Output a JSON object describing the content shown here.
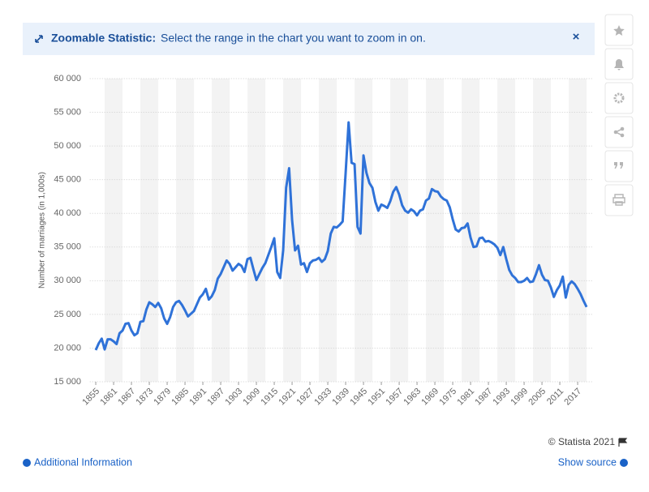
{
  "ui": {
    "banner_title": "Zoomable Statistic:",
    "banner_text": "Select the range in the chart you want to zoom in on.",
    "close": "×",
    "copyright": "© Statista 2021",
    "additional_info": "Additional Information",
    "show_source": "Show source"
  },
  "chart_data": {
    "type": "line",
    "ylabel": "Number of marriages (in 1,000s)",
    "color": "#2f72d8",
    "grid": true,
    "x": [
      1855,
      1856,
      1857,
      1858,
      1859,
      1860,
      1861,
      1862,
      1863,
      1864,
      1865,
      1866,
      1867,
      1868,
      1869,
      1870,
      1871,
      1872,
      1873,
      1874,
      1875,
      1876,
      1877,
      1878,
      1879,
      1880,
      1881,
      1882,
      1883,
      1884,
      1885,
      1886,
      1887,
      1888,
      1889,
      1890,
      1891,
      1892,
      1893,
      1894,
      1895,
      1896,
      1897,
      1898,
      1899,
      1900,
      1901,
      1902,
      1903,
      1904,
      1905,
      1906,
      1907,
      1908,
      1909,
      1910,
      1911,
      1912,
      1913,
      1914,
      1915,
      1916,
      1917,
      1918,
      1919,
      1920,
      1921,
      1922,
      1923,
      1924,
      1925,
      1926,
      1927,
      1928,
      1929,
      1930,
      1931,
      1932,
      1933,
      1934,
      1935,
      1936,
      1937,
      1938,
      1939,
      1940,
      1941,
      1942,
      1943,
      1944,
      1945,
      1946,
      1947,
      1948,
      1949,
      1950,
      1951,
      1952,
      1953,
      1954,
      1955,
      1956,
      1957,
      1958,
      1959,
      1960,
      1961,
      1962,
      1963,
      1964,
      1965,
      1966,
      1967,
      1968,
      1969,
      1970,
      1971,
      1972,
      1973,
      1974,
      1975,
      1976,
      1977,
      1978,
      1979,
      1980,
      1981,
      1982,
      1983,
      1984,
      1985,
      1986,
      1987,
      1988,
      1989,
      1990,
      1991,
      1992,
      1993,
      1994,
      1995,
      1996,
      1997,
      1998,
      1999,
      2000,
      2001,
      2002,
      2003,
      2004,
      2005,
      2006,
      2007,
      2008,
      2009,
      2010,
      2011,
      2012,
      2013,
      2014,
      2015,
      2016,
      2017,
      2018,
      2019,
      2020
    ],
    "values": [
      19700,
      20700,
      21400,
      19800,
      21300,
      21300,
      21000,
      20600,
      22200,
      22600,
      23600,
      23700,
      22600,
      21900,
      22200,
      23900,
      24000,
      25700,
      26800,
      26500,
      26100,
      26700,
      25900,
      24400,
      23600,
      24600,
      26100,
      26800,
      27000,
      26400,
      25600,
      24700,
      25100,
      25500,
      26500,
      27500,
      28000,
      28800,
      27200,
      27700,
      28600,
      30300,
      31000,
      32000,
      33000,
      32500,
      31500,
      32000,
      32500,
      32200,
      31300,
      33200,
      33400,
      31700,
      30100,
      31000,
      31900,
      32600,
      33800,
      35000,
      36300,
      31300,
      30400,
      34500,
      43800,
      46700,
      39000,
      34500,
      35200,
      32400,
      32600,
      31300,
      32600,
      33000,
      33100,
      33400,
      32800,
      33200,
      34400,
      37000,
      38000,
      37900,
      38300,
      38800,
      46000,
      53500,
      47500,
      47300,
      38000,
      37000,
      48600,
      46000,
      44500,
      43800,
      41700,
      40400,
      41300,
      41100,
      40800,
      41800,
      43200,
      43900,
      42800,
      41200,
      40400,
      40100,
      40600,
      40300,
      39700,
      40400,
      40600,
      41900,
      42200,
      43600,
      43300,
      43200,
      42500,
      42100,
      41900,
      40900,
      39100,
      37600,
      37300,
      37800,
      37900,
      38500,
      36400,
      35000,
      35100,
      36300,
      36400,
      35800,
      35900,
      35700,
      35400,
      34900,
      33800,
      35000,
      33200,
      31600,
      30800,
      30400,
      29800,
      29800,
      30000,
      30400,
      29800,
      29900,
      31000,
      32300,
      30900,
      30100,
      30000,
      29000,
      27600,
      28600,
      29300,
      30600,
      27500,
      29400,
      29900,
      29500,
      28800,
      28000,
      27000,
      26100
    ],
    "xlim": [
      1853,
      2022
    ],
    "xticks": [
      1855,
      1861,
      1867,
      1873,
      1879,
      1885,
      1891,
      1897,
      1903,
      1909,
      1915,
      1921,
      1927,
      1933,
      1939,
      1945,
      1951,
      1957,
      1963,
      1969,
      1975,
      1981,
      1987,
      1993,
      1999,
      2005,
      2011,
      2017
    ],
    "ylim": [
      15000,
      60000
    ],
    "yticks": [
      {
        "value": 15000,
        "label": "15 000"
      },
      {
        "value": 20000,
        "label": "20 000"
      },
      {
        "value": 25000,
        "label": "25 000"
      },
      {
        "value": 30000,
        "label": "30 000"
      },
      {
        "value": 35000,
        "label": "35 000"
      },
      {
        "value": 40000,
        "label": "40 000"
      },
      {
        "value": 45000,
        "label": "45 000"
      },
      {
        "value": 50000,
        "label": "50 000"
      },
      {
        "value": 55000,
        "label": "55 000"
      },
      {
        "value": 60000,
        "label": "60 000"
      }
    ]
  }
}
